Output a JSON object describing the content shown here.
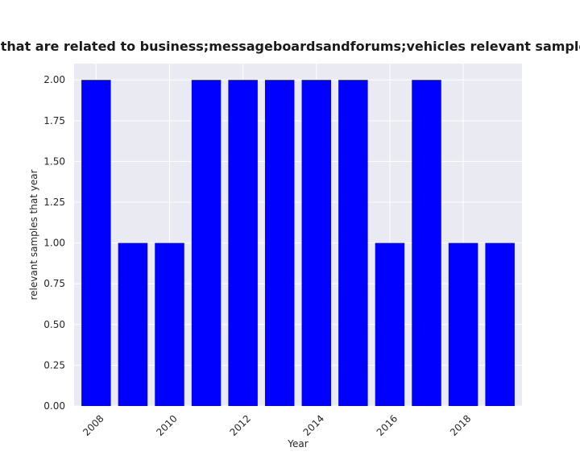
{
  "chart_data": {
    "type": "bar",
    "title": "Number of samples that are related to business;messageboardsandforums;vehicles relevant samples that year in private",
    "xlabel": "Year",
    "ylabel": "relevant samples that year",
    "categories": [
      2008,
      2009,
      2010,
      2011,
      2012,
      2013,
      2014,
      2015,
      2016,
      2017,
      2018,
      2019
    ],
    "values": [
      2,
      1,
      1,
      2,
      2,
      2,
      2,
      2,
      1,
      2,
      1,
      1
    ],
    "xticks": [
      "2008",
      "2010",
      "2012",
      "2014",
      "2016",
      "2018"
    ],
    "yticks": [
      "0.00",
      "0.25",
      "0.50",
      "0.75",
      "1.00",
      "1.25",
      "1.50",
      "1.75",
      "2.00"
    ],
    "ylim": [
      0,
      2.1
    ],
    "xlim": [
      2007.4,
      2019.6
    ],
    "grid": true,
    "colors": {
      "bar": "#0000ff",
      "plot_background": "#eaeaf2",
      "grid": "#ffffff"
    }
  }
}
